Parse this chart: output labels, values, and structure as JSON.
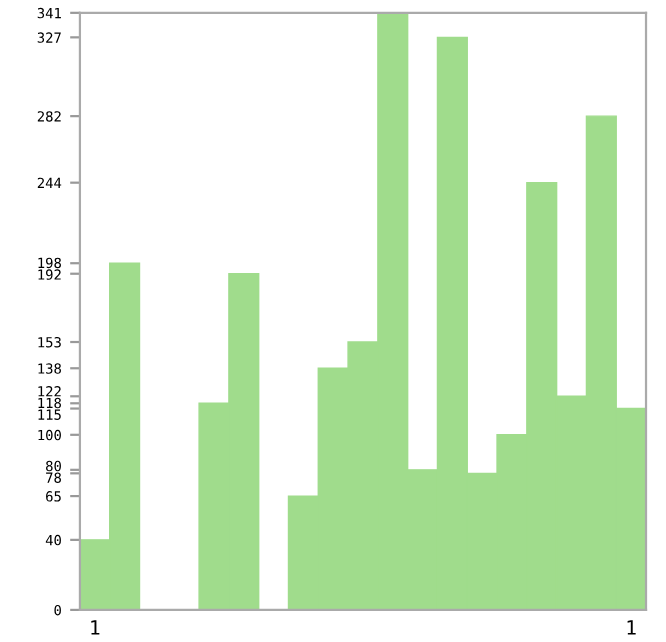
{
  "chart_data": {
    "type": "bar",
    "categories": [
      "1",
      null,
      null,
      null,
      null,
      null,
      null,
      null,
      null,
      null,
      null,
      null,
      null,
      null,
      null,
      null,
      null,
      null,
      "1"
    ],
    "values": [
      40,
      198,
      0,
      0,
      118,
      192,
      0,
      65,
      138,
      153,
      341,
      80,
      327,
      78,
      100,
      244,
      122,
      282,
      115
    ],
    "color": "#a0dc8c",
    "ylim": [
      0,
      341
    ],
    "yticks": [
      0,
      40,
      65,
      78,
      80,
      100,
      115,
      118,
      122,
      138,
      153,
      192,
      198,
      244,
      282,
      327,
      341
    ],
    "grid": false
  }
}
